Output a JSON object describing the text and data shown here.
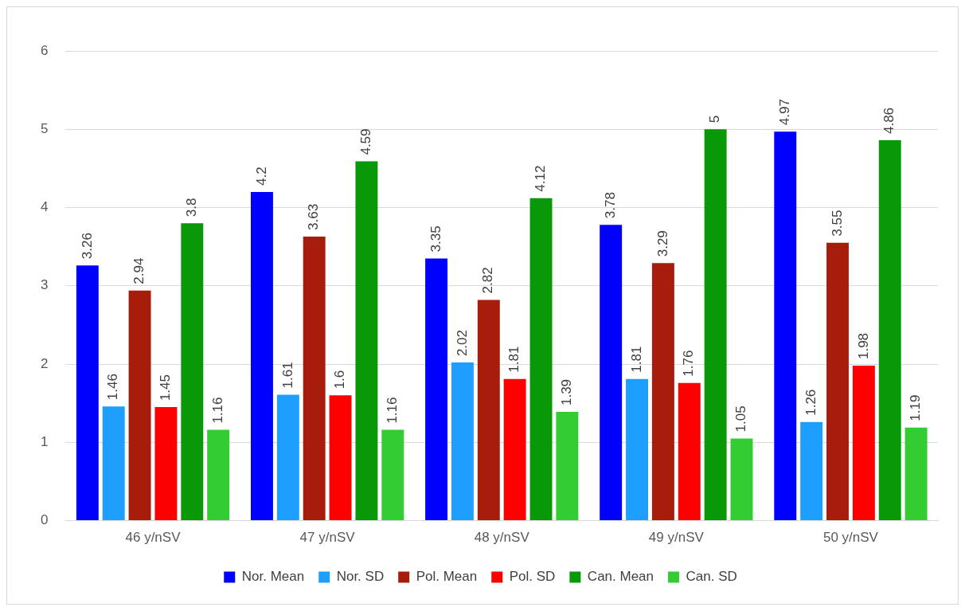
{
  "chart_data": {
    "type": "bar",
    "categories": [
      "46 y/nSV",
      "47 y/nSV",
      "48 y/nSV",
      "49 y/nSV",
      "50 y/nSV"
    ],
    "series": [
      {
        "name": "Nor. Mean",
        "color": "#0000ff",
        "values": [
          3.26,
          4.2,
          3.35,
          3.78,
          4.97
        ]
      },
      {
        "name": "Nor. SD",
        "color": "#1e9fff",
        "values": [
          1.46,
          1.61,
          2.02,
          1.81,
          1.26
        ]
      },
      {
        "name": "Pol. Mean",
        "color": "#a81c0c",
        "values": [
          2.94,
          3.63,
          2.82,
          3.29,
          3.55
        ]
      },
      {
        "name": "Pol. SD",
        "color": "#ff0000",
        "values": [
          1.45,
          1.6,
          1.81,
          1.76,
          1.98
        ]
      },
      {
        "name": "Can. Mean",
        "color": "#089808",
        "values": [
          3.8,
          4.59,
          4.12,
          5,
          4.86
        ]
      },
      {
        "name": "Can. SD",
        "color": "#33cc33",
        "values": [
          1.16,
          1.16,
          1.39,
          1.05,
          1.19
        ]
      }
    ],
    "ylim": [
      0,
      6
    ],
    "yticks": [
      0,
      1,
      2,
      3,
      4,
      5,
      6
    ],
    "grid": "y",
    "legend": "bottom",
    "data_labels": true
  }
}
